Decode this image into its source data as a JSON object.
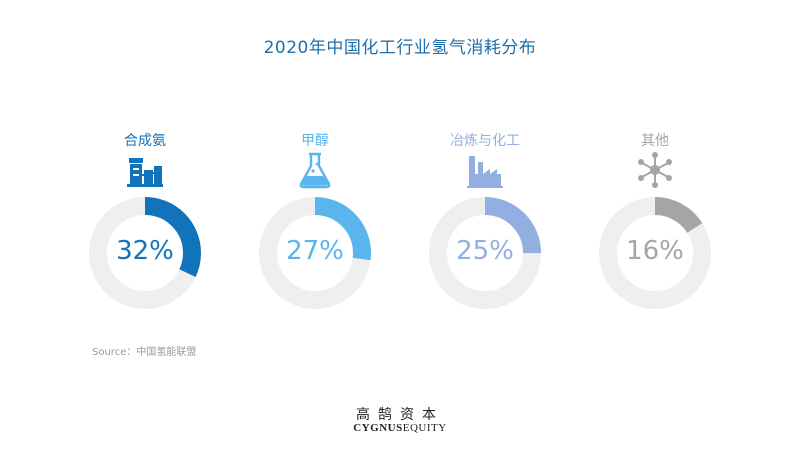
{
  "chart_data": {
    "type": "pie",
    "title": "2020年中国化工行业氢气消耗分布",
    "categories": [
      "合成氨",
      "甲醇",
      "冶炼与化工",
      "其他"
    ],
    "values": [
      32,
      27,
      25,
      16
    ],
    "labels": [
      "32%",
      "27%",
      "25%",
      "16%"
    ],
    "colors": [
      "#1173bb",
      "#5ab4ee",
      "#93aee0",
      "#a5a5a5"
    ],
    "track_color": "#efefef",
    "icons": [
      "ammonia-plant-icon",
      "flask-icon",
      "factory-icon",
      "molecule-icon"
    ]
  },
  "source": "Source：中国氢能联盟",
  "logo": {
    "cn": "高鹄资本",
    "en_bold": "CYGNUS",
    "en_light": "EQUITY"
  }
}
